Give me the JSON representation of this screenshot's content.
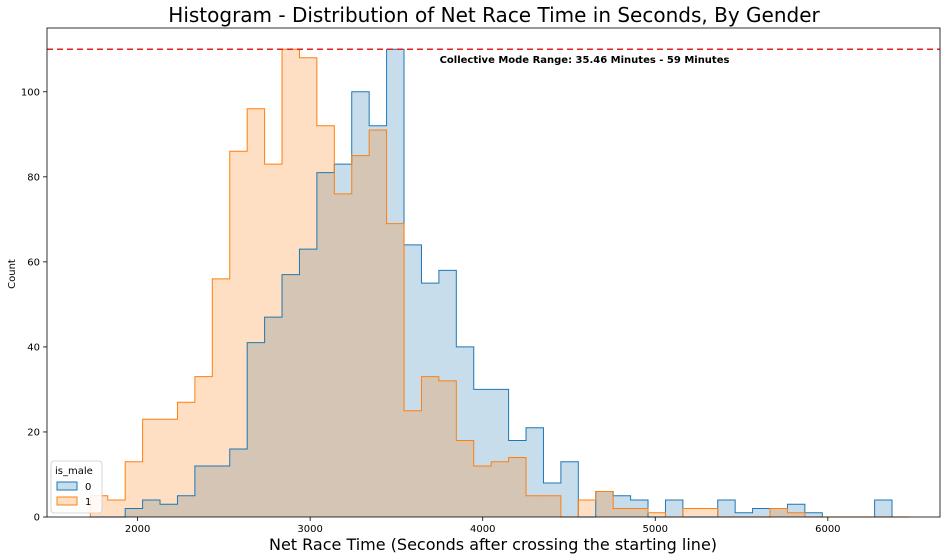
{
  "chart_data": {
    "type": "histogram",
    "title": "Histogram - Distribution of Net Race Time in Seconds, By Gender",
    "xlabel": "Net Race Time (Seconds after crossing the starting line)",
    "ylabel": "Count",
    "xlim": [
      1475,
      6650
    ],
    "ylim": [
      0,
      115
    ],
    "x_ticks": [
      2000,
      3000,
      4000,
      5000,
      6000
    ],
    "y_ticks": [
      0,
      20,
      40,
      60,
      80,
      100
    ],
    "grid": false,
    "bin_edges": [
      1726,
      1827,
      1928,
      2029,
      2130,
      2231,
      2332,
      2433,
      2534,
      2635,
      2736,
      2837,
      2938,
      3039,
      3140,
      3241,
      3342,
      3443,
      3544,
      3645,
      3746,
      3847,
      3948,
      4049,
      4150,
      4251,
      4352,
      4453,
      4554,
      4655,
      4756,
      4857,
      4958,
      5059,
      5160,
      5261,
      5362,
      5463,
      5564,
      5665,
      5766,
      5867,
      5968,
      6069,
      6170,
      6271,
      6372,
      6473
    ],
    "legend": {
      "title": "is_male",
      "location": "lower-left"
    },
    "series": [
      {
        "name": "0",
        "color": "#1f77b4",
        "values": [
          0,
          0,
          2,
          4,
          3,
          5,
          12,
          12,
          16,
          41,
          47,
          57,
          63,
          81,
          83,
          100,
          92,
          110,
          64,
          55,
          58,
          40,
          30,
          30,
          18,
          21,
          8,
          13,
          0,
          6,
          5,
          4,
          0,
          4,
          0,
          0,
          4,
          1,
          2,
          2,
          3,
          1,
          0,
          0,
          0,
          4,
          0
        ]
      },
      {
        "name": "1",
        "color": "#ff7f0e",
        "values": [
          5,
          4,
          13,
          23,
          23,
          27,
          33,
          56,
          86,
          96,
          83,
          110,
          108,
          92,
          76,
          85,
          91,
          69,
          25,
          33,
          32,
          18,
          12,
          13,
          14,
          5,
          5,
          0,
          4,
          6,
          2,
          2,
          1,
          0,
          2,
          2,
          0,
          0,
          0,
          2,
          1,
          0,
          0,
          0,
          0,
          0,
          0
        ]
      }
    ],
    "reference_line": {
      "y": 110,
      "color": "#e02020",
      "style": "dashed"
    },
    "annotation": {
      "text": "Collective Mode Range: 35.46 Minutes - 59 Minutes",
      "x": 3750,
      "y": 107.5
    }
  }
}
